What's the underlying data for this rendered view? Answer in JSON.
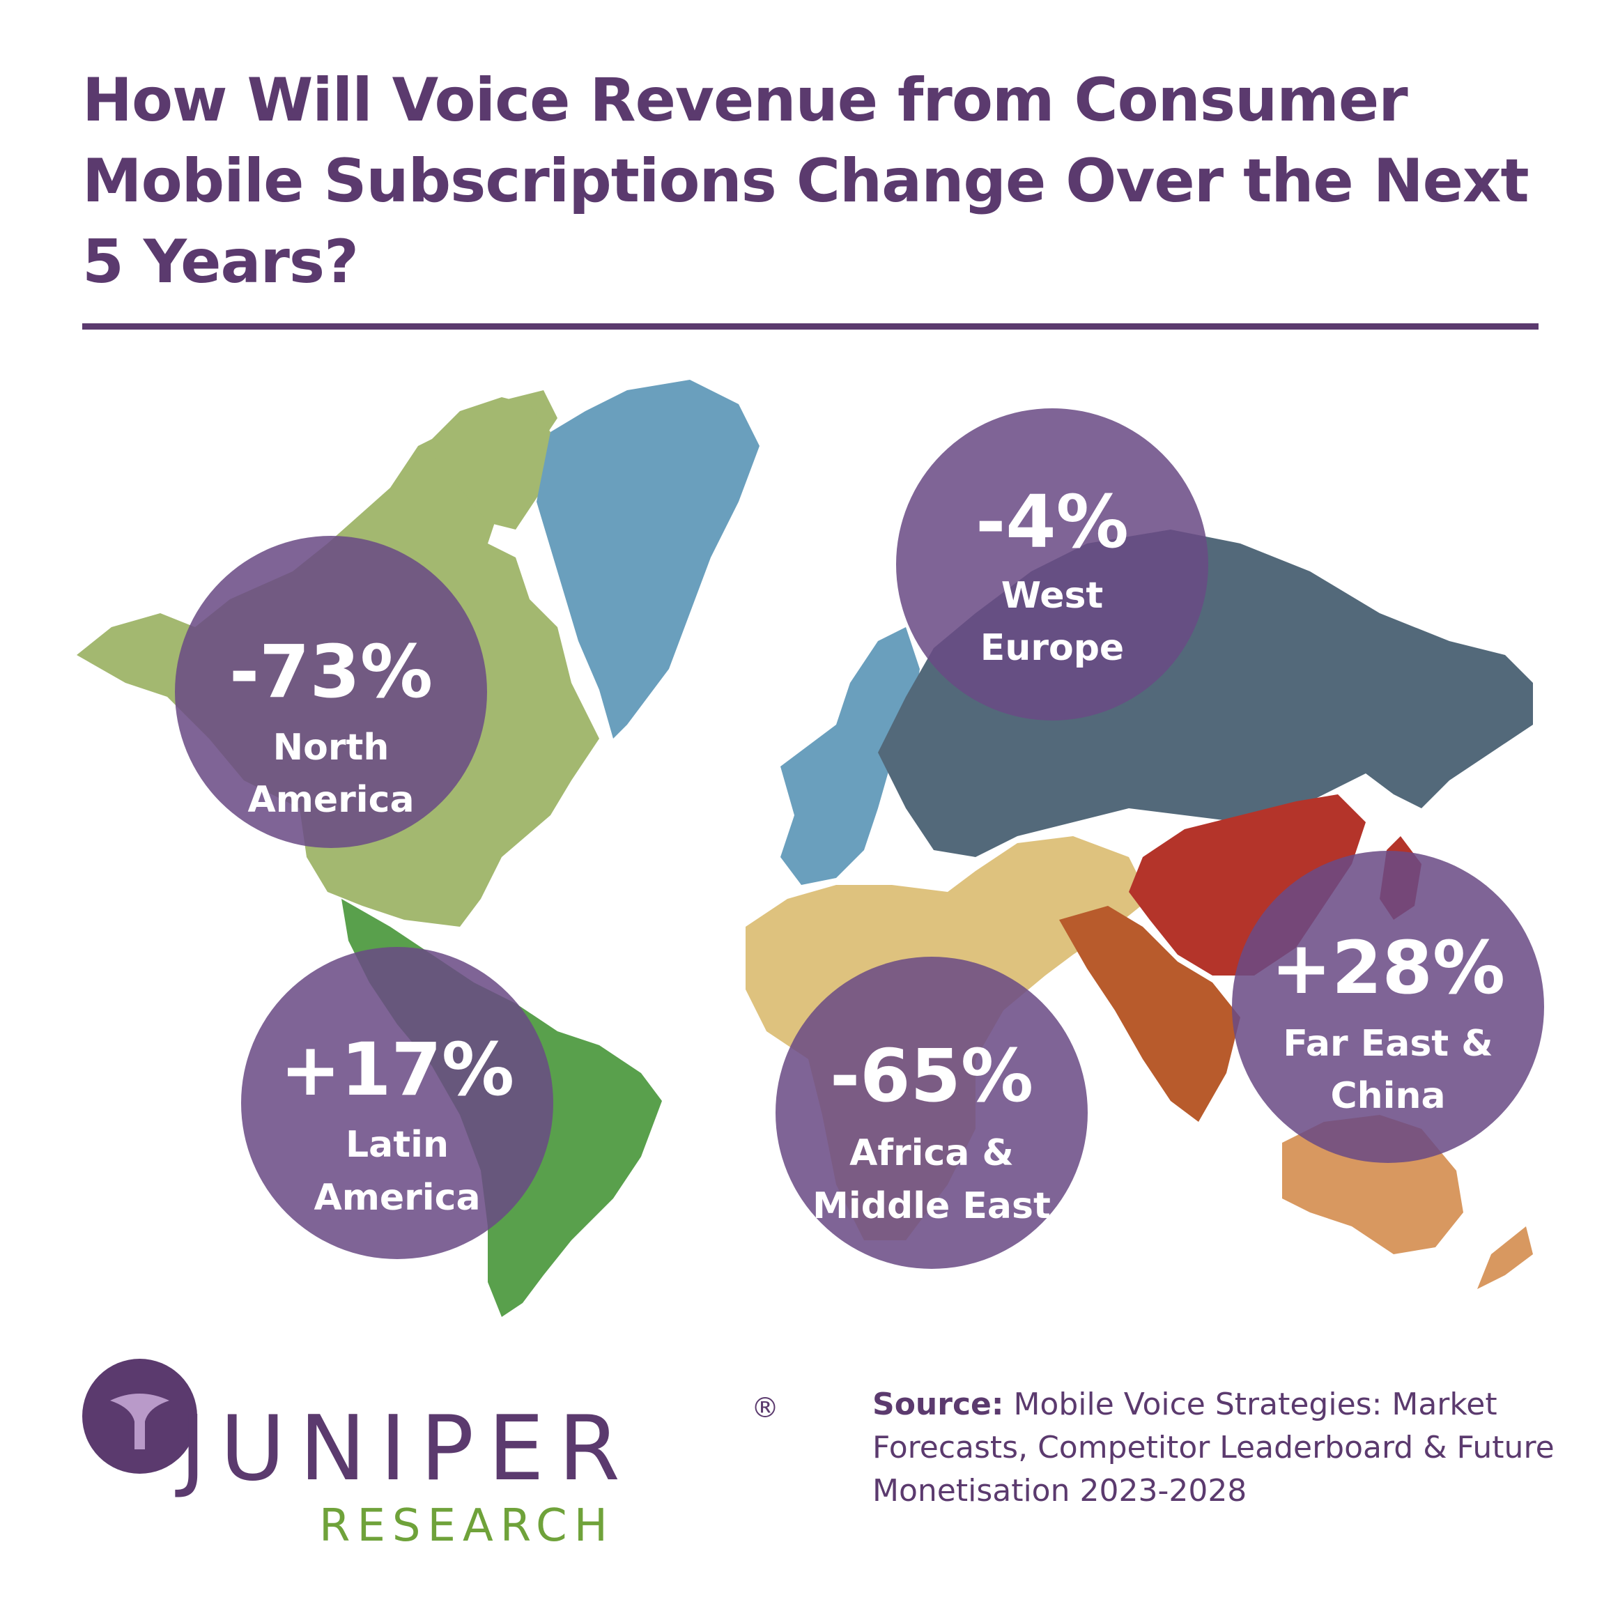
{
  "title": "How Will Voice Revenue from Consumer Mobile Subscriptions Change Over the Next 5 Years?",
  "colors": {
    "brand_purple": "#5b3a6e",
    "bubble": "#6a4a85",
    "north_america": "#a3b870",
    "latin_america": "#59a04c",
    "greenland_west_europe": "#6a9fbd",
    "russia_east_europe": "#53697a",
    "africa_middle_east": "#dec27e",
    "china": "#b4342a",
    "south_asia": "#b85b2c",
    "oceania": "#d89860",
    "logo_green": "#6fa23a"
  },
  "regions": [
    {
      "value": "-73%",
      "line1": "North",
      "line2": "America"
    },
    {
      "value": "-4%",
      "line1": "West",
      "line2": "Europe"
    },
    {
      "value": "+17%",
      "line1": "Latin",
      "line2": "America"
    },
    {
      "value": "-65%",
      "line1": "Africa &",
      "line2": "Middle East"
    },
    {
      "value": "+28%",
      "line1": "Far East &",
      "line2": "China"
    }
  ],
  "logo": {
    "name": "JUNIPER",
    "registered": "®",
    "subtitle": "RESEARCH"
  },
  "source": {
    "label": "Source:",
    "text": "Mobile Voice Strategies: Market Forecasts, Competitor Leaderboard & Future Monetisation 2023-2028"
  }
}
